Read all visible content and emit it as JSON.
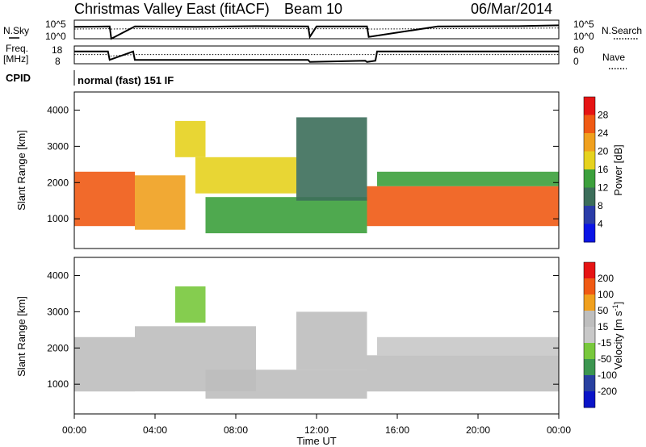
{
  "header": {
    "station": "Christmas Valley East (fitACF)",
    "beam": "Beam 10",
    "date": "06/Mar/2014"
  },
  "nsky_panel": {
    "left_label": "N.Sky",
    "right_label": "N.Search",
    "left_ticks": [
      "10^5",
      "10^0"
    ],
    "right_ticks": [
      "10^5",
      "10^0"
    ]
  },
  "freq_panel": {
    "left_label_1": "Freq.",
    "left_label_2": "[MHz]",
    "right_label": "Nave",
    "left_ticks": [
      "18",
      "8"
    ],
    "right_ticks": [
      "60",
      "0"
    ]
  },
  "cpid": {
    "label": "CPID",
    "value": "normal (fast) 151 IF"
  },
  "x_axis": {
    "label": "Time UT",
    "ticks": [
      "00:00",
      "04:00",
      "08:00",
      "12:00",
      "16:00",
      "20:00",
      "00:00"
    ]
  },
  "colors": {
    "power_scale": [
      "#0a14e6",
      "#2a3ca8",
      "#3c6e5a",
      "#3ca03c",
      "#e6d21e",
      "#f0a01e",
      "#f05a14",
      "#e61414"
    ],
    "velocity_scale": [
      "#e61414",
      "#f05a14",
      "#f0a01e",
      "#bebebe",
      "#c8c8c8",
      "#78c83c",
      "#3c9650",
      "#2840a0",
      "#0a14c8"
    ],
    "ground_scatter": "#bebebe"
  },
  "chart_data": [
    {
      "type": "line",
      "name": "nsky-nsearch",
      "x": [
        "00:00",
        "01:45",
        "01:50",
        "03:00",
        "06:00",
        "09:00",
        "11:35",
        "11:40",
        "12:00",
        "14:30",
        "14:35",
        "18:00",
        "22:00",
        "24:00"
      ],
      "series": [
        {
          "values": [
            3.2,
            3.3,
            0.0,
            3.3,
            3.2,
            3.4,
            3.3,
            0.5,
            3.3,
            3.3,
            0.5,
            3.3,
            3.4,
            3.6
          ]
        },
        {
          "values": [
            2.6,
            2.7,
            2.6,
            2.7,
            2.6,
            2.8,
            2.7,
            2.6,
            2.7,
            2.7,
            2.6,
            2.7,
            2.8,
            2.9
          ]
        }
      ],
      "ylim": [
        0,
        5
      ],
      "ylim_right": [
        0,
        5
      ]
    },
    {
      "type": "line",
      "name": "freq-nave",
      "x": [
        "00:00",
        "01:40",
        "01:45",
        "02:55",
        "03:00",
        "11:35",
        "11:40",
        "14:25",
        "14:30",
        "14:55",
        "15:00",
        "24:00"
      ],
      "series": [
        {
          "values": [
            14.9,
            14.9,
            10.2,
            14.9,
            10.2,
            10.2,
            9.0,
            9.7,
            9.0,
            9.7,
            14.9,
            14.9
          ]
        },
        {
          "values": [
            31,
            31,
            26,
            31,
            31,
            31,
            31,
            31,
            31,
            31,
            31,
            31
          ]
        }
      ],
      "ylim": [
        8,
        18
      ],
      "ylim_right": [
        0,
        60
      ]
    },
    {
      "type": "heatmap",
      "name": "power",
      "x_range_hours": [
        0,
        24
      ],
      "ylabel": "Slant Range [km]",
      "ylim": [
        180,
        4500
      ],
      "yticks": [
        1000,
        2000,
        3000,
        4000
      ],
      "colorbar": {
        "label": "Power [dB]",
        "ticks": [
          "4",
          "8",
          "12",
          "16",
          "20",
          "24",
          "28"
        ],
        "range": [
          0,
          32
        ]
      },
      "regions": [
        {
          "t": [
            0.0,
            3.0
          ],
          "r": [
            800,
            2300
          ],
          "value": 27
        },
        {
          "t": [
            3.0,
            5.5
          ],
          "r": [
            700,
            2200
          ],
          "value": 22
        },
        {
          "t": [
            5.0,
            6.5
          ],
          "r": [
            2700,
            3700
          ],
          "value": 18
        },
        {
          "t": [
            6.0,
            11.0
          ],
          "r": [
            1700,
            2700
          ],
          "value": 16
        },
        {
          "t": [
            6.5,
            14.5
          ],
          "r": [
            600,
            1600
          ],
          "value": 12
        },
        {
          "t": [
            11.0,
            14.5
          ],
          "r": [
            1500,
            3800
          ],
          "value": 8
        },
        {
          "t": [
            14.5,
            24.0
          ],
          "r": [
            800,
            1900
          ],
          "value": 27
        },
        {
          "t": [
            15.0,
            24.0
          ],
          "r": [
            1900,
            2300
          ],
          "value": 12
        }
      ]
    },
    {
      "type": "heatmap",
      "name": "velocity",
      "x_range_hours": [
        0,
        24
      ],
      "ylabel": "Slant Range [km]",
      "ylim": [
        180,
        4500
      ],
      "yticks": [
        1000,
        2000,
        3000,
        4000
      ],
      "colorbar": {
        "label": "Velocity [m s^-1]",
        "ticks": [
          "200",
          "100",
          "50",
          "15",
          "-15",
          "-50",
          "-100",
          "-200"
        ],
        "range": [
          -250,
          250
        ]
      },
      "regions": [
        {
          "t": [
            0.0,
            3.0
          ],
          "r": [
            800,
            2300
          ],
          "value": 0,
          "ground_scatter": true
        },
        {
          "t": [
            3.0,
            9.0
          ],
          "r": [
            800,
            2600
          ],
          "value": 0,
          "ground_scatter": true
        },
        {
          "t": [
            5.0,
            6.5
          ],
          "r": [
            2700,
            3700
          ],
          "value": -80
        },
        {
          "t": [
            6.5,
            14.5
          ],
          "r": [
            600,
            1400
          ],
          "value": 40
        },
        {
          "t": [
            11.0,
            14.5
          ],
          "r": [
            1400,
            3000
          ],
          "value": 30
        },
        {
          "t": [
            14.5,
            24.0
          ],
          "r": [
            800,
            1800
          ],
          "value": 0,
          "ground_scatter": true
        },
        {
          "t": [
            15.0,
            24.0
          ],
          "r": [
            1800,
            2300
          ],
          "value": -20
        }
      ]
    }
  ]
}
